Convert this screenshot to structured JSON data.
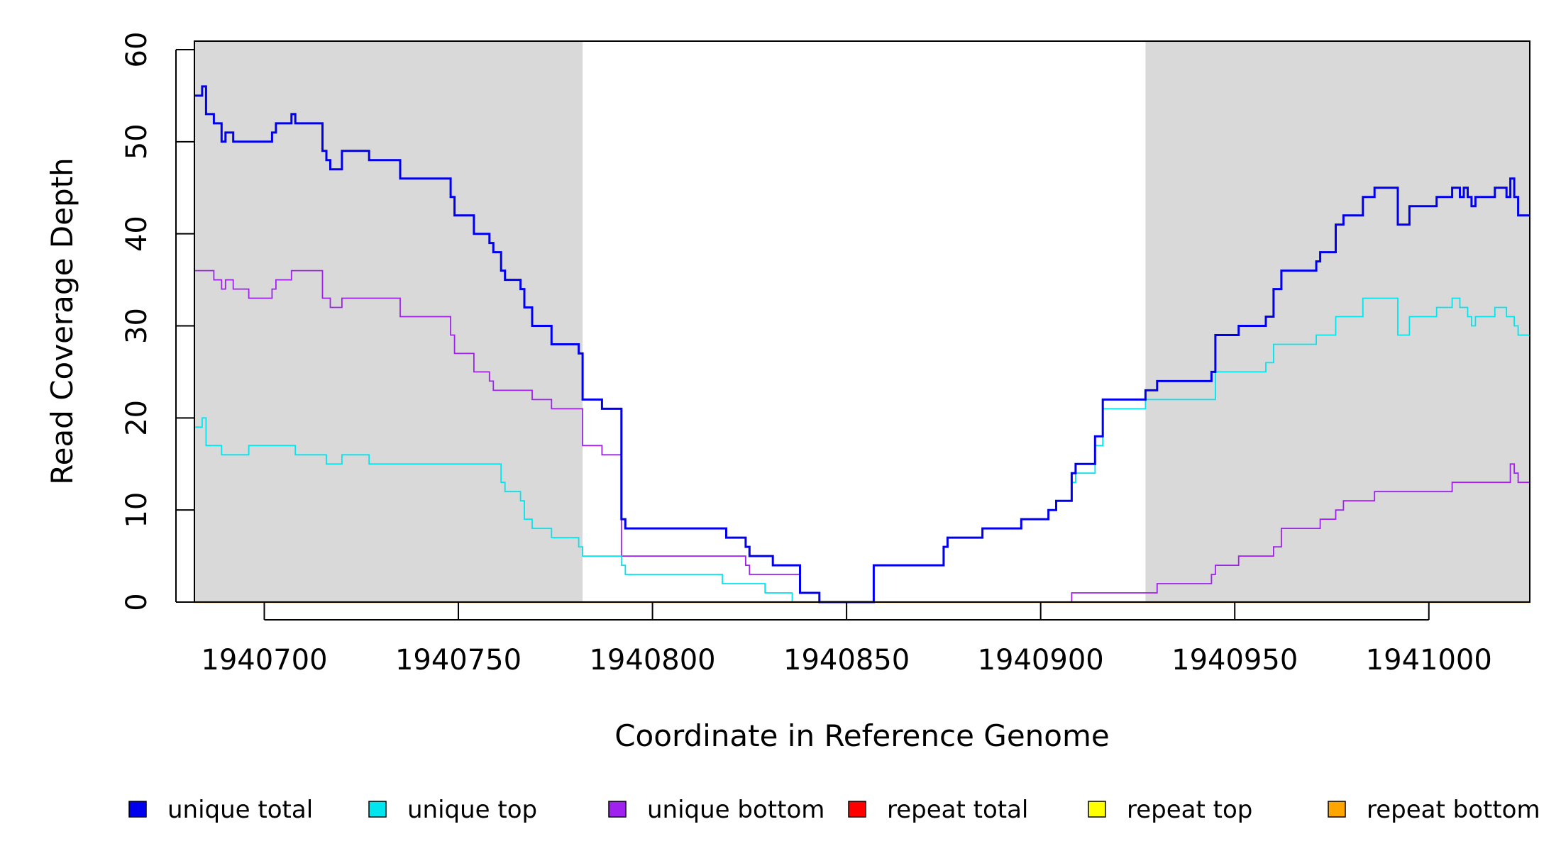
{
  "chart_data": {
    "type": "line",
    "title": "",
    "xlabel": "Coordinate in Reference Genome",
    "ylabel": "Read Coverage Depth",
    "xlim": [
      1940682,
      1941026
    ],
    "ylim": [
      0,
      60
    ],
    "x_ticks": [
      1940700,
      1940750,
      1940800,
      1940850,
      1940900,
      1940950,
      1941000
    ],
    "x_tick_labels": [
      "1940700",
      "1940750",
      "1940800",
      "1940850",
      "1940900",
      "1940950",
      "1941000"
    ],
    "y_ticks": [
      0,
      10,
      20,
      30,
      40,
      50,
      60
    ],
    "y_tick_labels": [
      "0",
      "10",
      "20",
      "30",
      "40",
      "50",
      "60"
    ],
    "shaded_regions": [
      {
        "x_start": 1940682,
        "x_end": 1940782,
        "color": "#d9d9d9"
      },
      {
        "x_start": 1940927,
        "x_end": 1941026,
        "color": "#d9d9d9"
      }
    ],
    "legend_position": "bottom",
    "series": [
      {
        "name": "unique total",
        "color": "#0000ee",
        "line_width": 3,
        "step": true,
        "points": [
          [
            1940682,
            55
          ],
          [
            1940684,
            56
          ],
          [
            1940685,
            53
          ],
          [
            1940687,
            52
          ],
          [
            1940689,
            50
          ],
          [
            1940690,
            51
          ],
          [
            1940692,
            50
          ],
          [
            1940702,
            51
          ],
          [
            1940703,
            52
          ],
          [
            1940707,
            53
          ],
          [
            1940708,
            52
          ],
          [
            1940715,
            49
          ],
          [
            1940716,
            48
          ],
          [
            1940717,
            47
          ],
          [
            1940720,
            49
          ],
          [
            1940727,
            48
          ],
          [
            1940735,
            46
          ],
          [
            1940748,
            44
          ],
          [
            1940749,
            42
          ],
          [
            1940754,
            40
          ],
          [
            1940758,
            39
          ],
          [
            1940759,
            38
          ],
          [
            1940761,
            36
          ],
          [
            1940762,
            35
          ],
          [
            1940766,
            34
          ],
          [
            1940767,
            32
          ],
          [
            1940769,
            30
          ],
          [
            1940774,
            28
          ],
          [
            1940781,
            27
          ],
          [
            1940782,
            22
          ],
          [
            1940787,
            21
          ],
          [
            1940792,
            9
          ],
          [
            1940793,
            8
          ],
          [
            1940819,
            7
          ],
          [
            1940824,
            6
          ],
          [
            1940825,
            5
          ],
          [
            1940831,
            4
          ],
          [
            1940838,
            1
          ],
          [
            1940843,
            0
          ],
          [
            1940857,
            4
          ],
          [
            1940875,
            6
          ],
          [
            1940876,
            7
          ],
          [
            1940885,
            8
          ],
          [
            1940895,
            9
          ],
          [
            1940902,
            10
          ],
          [
            1940904,
            11
          ],
          [
            1940908,
            14
          ],
          [
            1940909,
            15
          ],
          [
            1940914,
            18
          ],
          [
            1940916,
            22
          ],
          [
            1940927,
            23
          ],
          [
            1940930,
            24
          ],
          [
            1940944,
            25
          ],
          [
            1940945,
            29
          ],
          [
            1940951,
            30
          ],
          [
            1940958,
            31
          ],
          [
            1940960,
            34
          ],
          [
            1940962,
            36
          ],
          [
            1940971,
            37
          ],
          [
            1940972,
            38
          ],
          [
            1940976,
            41
          ],
          [
            1940978,
            42
          ],
          [
            1940983,
            44
          ],
          [
            1940986,
            45
          ],
          [
            1940992,
            41
          ],
          [
            1940995,
            43
          ],
          [
            1941002,
            44
          ],
          [
            1941006,
            45
          ],
          [
            1941008,
            44
          ],
          [
            1941009,
            45
          ],
          [
            1941010,
            44
          ],
          [
            1941011,
            43
          ],
          [
            1941012,
            44
          ],
          [
            1941017,
            45
          ],
          [
            1941020,
            44
          ],
          [
            1941021,
            46
          ],
          [
            1941022,
            44
          ],
          [
            1941023,
            42
          ],
          [
            1941026,
            42
          ]
        ]
      },
      {
        "name": "unique top",
        "color": "#00e5ee",
        "line_width": 1.8,
        "step": true,
        "points": [
          [
            1940682,
            19
          ],
          [
            1940684,
            20
          ],
          [
            1940685,
            17
          ],
          [
            1940689,
            16
          ],
          [
            1940696,
            17
          ],
          [
            1940708,
            16
          ],
          [
            1940716,
            15
          ],
          [
            1940720,
            16
          ],
          [
            1940727,
            15
          ],
          [
            1940761,
            13
          ],
          [
            1940762,
            12
          ],
          [
            1940766,
            11
          ],
          [
            1940767,
            9
          ],
          [
            1940769,
            8
          ],
          [
            1940774,
            7
          ],
          [
            1940781,
            6
          ],
          [
            1940782,
            5
          ],
          [
            1940792,
            4
          ],
          [
            1940793,
            3
          ],
          [
            1940818,
            2
          ],
          [
            1940829,
            1
          ],
          [
            1940836,
            0
          ],
          [
            1940857,
            4
          ],
          [
            1940875,
            6
          ],
          [
            1940876,
            7
          ],
          [
            1940885,
            8
          ],
          [
            1940895,
            9
          ],
          [
            1940902,
            10
          ],
          [
            1940904,
            11
          ],
          [
            1940908,
            13
          ],
          [
            1940909,
            14
          ],
          [
            1940914,
            17
          ],
          [
            1940916,
            21
          ],
          [
            1940927,
            22
          ],
          [
            1940945,
            25
          ],
          [
            1940958,
            26
          ],
          [
            1940960,
            28
          ],
          [
            1940971,
            29
          ],
          [
            1940976,
            31
          ],
          [
            1940983,
            33
          ],
          [
            1940992,
            29
          ],
          [
            1940995,
            31
          ],
          [
            1941002,
            32
          ],
          [
            1941006,
            33
          ],
          [
            1941008,
            32
          ],
          [
            1941010,
            31
          ],
          [
            1941011,
            30
          ],
          [
            1941012,
            31
          ],
          [
            1941017,
            32
          ],
          [
            1941020,
            31
          ],
          [
            1941022,
            30
          ],
          [
            1941023,
            29
          ],
          [
            1941026,
            29
          ]
        ]
      },
      {
        "name": "unique bottom",
        "color": "#a020f0",
        "line_width": 1.8,
        "step": true,
        "points": [
          [
            1940682,
            36
          ],
          [
            1940687,
            35
          ],
          [
            1940689,
            34
          ],
          [
            1940690,
            35
          ],
          [
            1940692,
            34
          ],
          [
            1940696,
            33
          ],
          [
            1940702,
            34
          ],
          [
            1940703,
            35
          ],
          [
            1940707,
            36
          ],
          [
            1940715,
            33
          ],
          [
            1940717,
            32
          ],
          [
            1940720,
            33
          ],
          [
            1940735,
            31
          ],
          [
            1940748,
            29
          ],
          [
            1940749,
            27
          ],
          [
            1940754,
            25
          ],
          [
            1940758,
            24
          ],
          [
            1940759,
            23
          ],
          [
            1940769,
            22
          ],
          [
            1940774,
            21
          ],
          [
            1940782,
            17
          ],
          [
            1940787,
            16
          ],
          [
            1940792,
            5
          ],
          [
            1940824,
            4
          ],
          [
            1940825,
            3
          ],
          [
            1940838,
            1
          ],
          [
            1940843,
            0
          ],
          [
            1940908,
            1
          ],
          [
            1940930,
            2
          ],
          [
            1940944,
            3
          ],
          [
            1940945,
            4
          ],
          [
            1940951,
            5
          ],
          [
            1940960,
            6
          ],
          [
            1940962,
            8
          ],
          [
            1940972,
            9
          ],
          [
            1940976,
            10
          ],
          [
            1940978,
            11
          ],
          [
            1940986,
            12
          ],
          [
            1941006,
            13
          ],
          [
            1941021,
            15
          ],
          [
            1941022,
            14
          ],
          [
            1941023,
            13
          ],
          [
            1941026,
            13
          ]
        ]
      },
      {
        "name": "repeat total",
        "color": "#ff0000",
        "line_width": 2,
        "step": true,
        "points": [
          [
            1940682,
            0
          ],
          [
            1941026,
            0
          ]
        ]
      },
      {
        "name": "repeat top",
        "color": "#ffff00",
        "line_width": 2,
        "step": true,
        "points": [
          [
            1940682,
            0
          ],
          [
            1941026,
            0
          ]
        ]
      },
      {
        "name": "repeat bottom",
        "color": "#ffa500",
        "line_width": 2.5,
        "step": true,
        "points": [
          [
            1940682,
            0
          ],
          [
            1941026,
            0
          ]
        ]
      }
    ],
    "legend": [
      {
        "label": "unique total",
        "color": "#0000ee"
      },
      {
        "label": "unique top",
        "color": "#00e5ee"
      },
      {
        "label": "unique bottom",
        "color": "#a020f0"
      },
      {
        "label": "repeat total",
        "color": "#ff0000"
      },
      {
        "label": "repeat top",
        "color": "#ffff00"
      },
      {
        "label": "repeat bottom",
        "color": "#ffa500"
      }
    ]
  }
}
